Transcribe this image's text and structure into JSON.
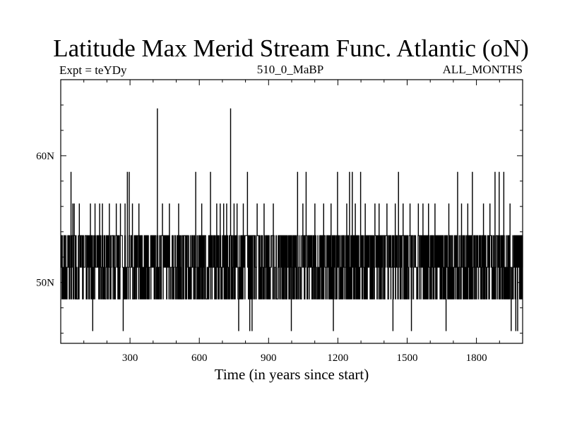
{
  "chart_data": {
    "type": "line",
    "title": "Latitude Max Merid Stream Func. Atlantic (oN)",
    "subtitle_left": "Expt = teYDy",
    "subtitle_center": "510_0_MaBP",
    "subtitle_right": "ALL_MONTHS",
    "xlabel": "Time (in years since start)",
    "ylabel": "",
    "xlim": [
      0,
      2000
    ],
    "ylim": [
      45.2,
      66.0
    ],
    "x_ticks": [
      300,
      600,
      900,
      1200,
      1500,
      1800
    ],
    "x_tick_labels": [
      "300",
      "600",
      "900",
      "1200",
      "1500",
      "1800"
    ],
    "y_ticks": [
      50,
      60
    ],
    "y_tick_labels": [
      "50N",
      "60N"
    ],
    "grid": false,
    "legend": "none",
    "series": [
      {
        "levels": [
          46.2,
          48.7,
          51.2,
          53.7,
          56.2,
          58.7,
          63.7
        ],
        "baseline_band": [
          48.7,
          53.7
        ],
        "spikes": [
          {
            "x": 44,
            "value": 58.7
          },
          {
            "x": 52,
            "value": 56.2
          },
          {
            "x": 58,
            "value": 56.2
          },
          {
            "x": 80,
            "value": 56.2
          },
          {
            "x": 128,
            "value": 56.2
          },
          {
            "x": 138,
            "value": 46.2
          },
          {
            "x": 148,
            "value": 56.2
          },
          {
            "x": 168,
            "value": 56.2
          },
          {
            "x": 180,
            "value": 56.2
          },
          {
            "x": 210,
            "value": 56.2
          },
          {
            "x": 240,
            "value": 56.2
          },
          {
            "x": 258,
            "value": 56.2
          },
          {
            "x": 270,
            "value": 46.2
          },
          {
            "x": 278,
            "value": 56.2
          },
          {
            "x": 288,
            "value": 58.7
          },
          {
            "x": 296,
            "value": 58.7
          },
          {
            "x": 310,
            "value": 56.2
          },
          {
            "x": 338,
            "value": 56.2
          },
          {
            "x": 418,
            "value": 63.7
          },
          {
            "x": 440,
            "value": 56.2
          },
          {
            "x": 470,
            "value": 56.2
          },
          {
            "x": 510,
            "value": 56.2
          },
          {
            "x": 584,
            "value": 58.7
          },
          {
            "x": 610,
            "value": 56.2
          },
          {
            "x": 648,
            "value": 58.7
          },
          {
            "x": 675,
            "value": 56.2
          },
          {
            "x": 690,
            "value": 56.2
          },
          {
            "x": 705,
            "value": 56.2
          },
          {
            "x": 718,
            "value": 56.2
          },
          {
            "x": 735,
            "value": 63.7
          },
          {
            "x": 750,
            "value": 56.2
          },
          {
            "x": 763,
            "value": 56.2
          },
          {
            "x": 770,
            "value": 46.2
          },
          {
            "x": 790,
            "value": 56.2
          },
          {
            "x": 808,
            "value": 58.7
          },
          {
            "x": 818,
            "value": 46.2
          },
          {
            "x": 828,
            "value": 46.2
          },
          {
            "x": 850,
            "value": 56.2
          },
          {
            "x": 880,
            "value": 56.2
          },
          {
            "x": 920,
            "value": 56.2
          },
          {
            "x": 998,
            "value": 46.2
          },
          {
            "x": 1025,
            "value": 58.7
          },
          {
            "x": 1048,
            "value": 56.2
          },
          {
            "x": 1062,
            "value": 58.7
          },
          {
            "x": 1100,
            "value": 56.2
          },
          {
            "x": 1138,
            "value": 56.2
          },
          {
            "x": 1170,
            "value": 56.2
          },
          {
            "x": 1180,
            "value": 46.2
          },
          {
            "x": 1198,
            "value": 58.7
          },
          {
            "x": 1238,
            "value": 56.2
          },
          {
            "x": 1250,
            "value": 58.7
          },
          {
            "x": 1262,
            "value": 58.7
          },
          {
            "x": 1275,
            "value": 56.2
          },
          {
            "x": 1298,
            "value": 58.7
          },
          {
            "x": 1318,
            "value": 56.2
          },
          {
            "x": 1360,
            "value": 56.2
          },
          {
            "x": 1378,
            "value": 56.2
          },
          {
            "x": 1412,
            "value": 56.2
          },
          {
            "x": 1438,
            "value": 46.2
          },
          {
            "x": 1448,
            "value": 56.2
          },
          {
            "x": 1462,
            "value": 58.7
          },
          {
            "x": 1482,
            "value": 56.2
          },
          {
            "x": 1512,
            "value": 56.2
          },
          {
            "x": 1518,
            "value": 46.2
          },
          {
            "x": 1548,
            "value": 56.2
          },
          {
            "x": 1568,
            "value": 56.2
          },
          {
            "x": 1592,
            "value": 56.2
          },
          {
            "x": 1620,
            "value": 56.2
          },
          {
            "x": 1668,
            "value": 46.2
          },
          {
            "x": 1680,
            "value": 56.2
          },
          {
            "x": 1718,
            "value": 58.7
          },
          {
            "x": 1735,
            "value": 56.2
          },
          {
            "x": 1762,
            "value": 56.2
          },
          {
            "x": 1782,
            "value": 58.7
          },
          {
            "x": 1830,
            "value": 56.2
          },
          {
            "x": 1858,
            "value": 56.2
          },
          {
            "x": 1880,
            "value": 58.7
          },
          {
            "x": 1898,
            "value": 58.7
          },
          {
            "x": 1918,
            "value": 58.7
          },
          {
            "x": 1945,
            "value": 56.2
          },
          {
            "x": 1950,
            "value": 46.2
          },
          {
            "x": 1970,
            "value": 46.2
          },
          {
            "x": 1978,
            "value": 46.2
          },
          {
            "x": 1992,
            "value": 48.7
          }
        ]
      }
    ]
  }
}
